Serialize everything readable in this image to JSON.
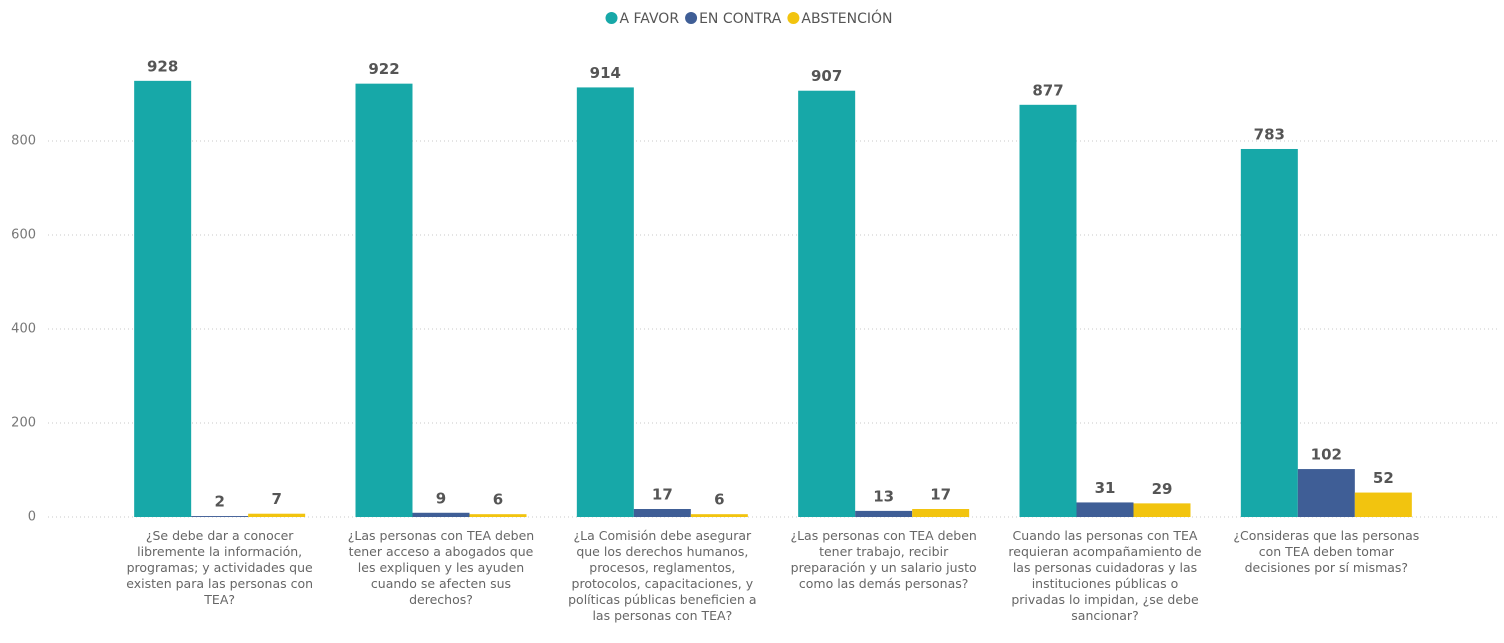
{
  "chart_data": {
    "type": "bar",
    "categories": [
      "¿Se debe dar a conocer libremente la información, programas; y actividades que existen para las personas con TEA?",
      "¿Las personas con TEA deben tener acceso a abogados que les expliquen y les ayuden cuando se afecten sus derechos?",
      "¿La Comisión debe asegurar que los derechos humanos, procesos, reglamentos, protocolos, capacitaciones, y políticas públicas beneficien a las personas con TEA?",
      "¿Las personas con TEA deben tener trabajo, recibir preparación y un salario justo como las demás personas?",
      "Cuando las personas con TEA requieran acompañamiento de las personas cuidadoras y las instituciones públicas o privadas lo impidan, ¿se debe sancionar?",
      "¿Consideras que las personas con TEA deben tomar decisiones por sí mismas?"
    ],
    "series": [
      {
        "name": "A FAVOR",
        "color": "#17a8a8",
        "values": [
          928,
          922,
          914,
          907,
          877,
          783
        ]
      },
      {
        "name": "EN CONTRA",
        "color": "#3f5e96",
        "values": [
          2,
          9,
          17,
          13,
          31,
          102
        ]
      },
      {
        "name": "ABSTENCIÓN",
        "color": "#f2c40f",
        "values": [
          7,
          6,
          6,
          17,
          29,
          52
        ]
      }
    ],
    "ylim": [
      0,
      1000
    ],
    "yticks": [
      0,
      200,
      400,
      600,
      800
    ],
    "grid": true,
    "legend": "top"
  }
}
